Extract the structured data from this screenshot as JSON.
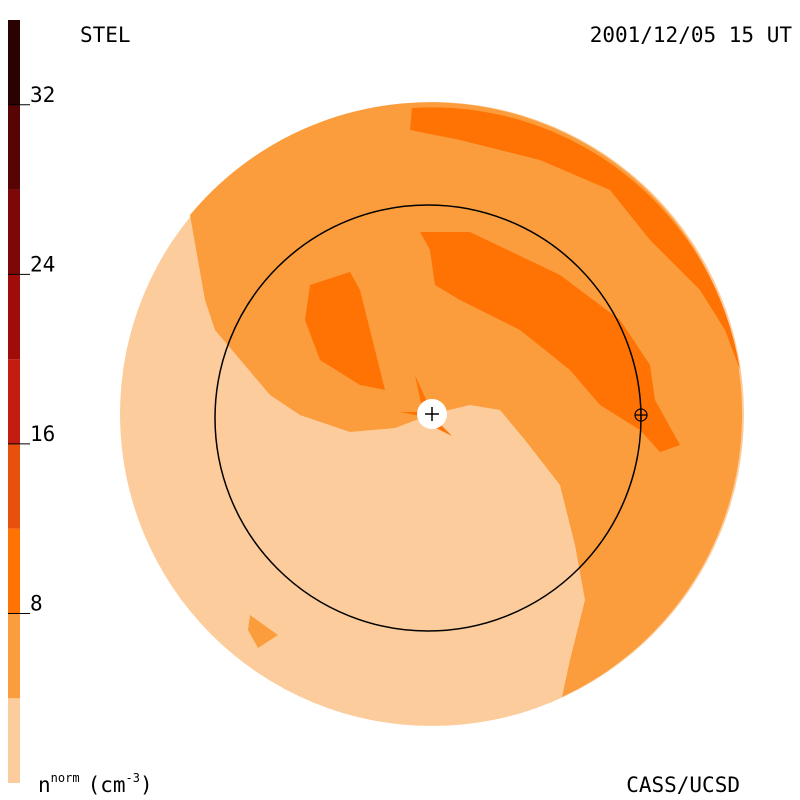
{
  "chart_data": {
    "type": "heatmap",
    "title": "STEL",
    "subtitle": "2001/12/05 15 UT",
    "credit": "CASS/UCSD",
    "colorbar_label": {
      "base": "n",
      "sup": "norm",
      "unit": "(cm",
      "unit_sup": "-3",
      "close": ")"
    },
    "colorbar": {
      "levels": [
        0,
        4,
        8,
        12,
        16,
        20,
        24,
        28,
        32,
        36
      ],
      "colors": [
        "#fccc9c",
        "#fb9d3c",
        "#ff7204",
        "#e8500e",
        "#c41c10",
        "#a00c0a",
        "#7e0808",
        "#560404",
        "#2a0202"
      ],
      "ticks": [
        8,
        16,
        24,
        32
      ]
    }
  }
}
